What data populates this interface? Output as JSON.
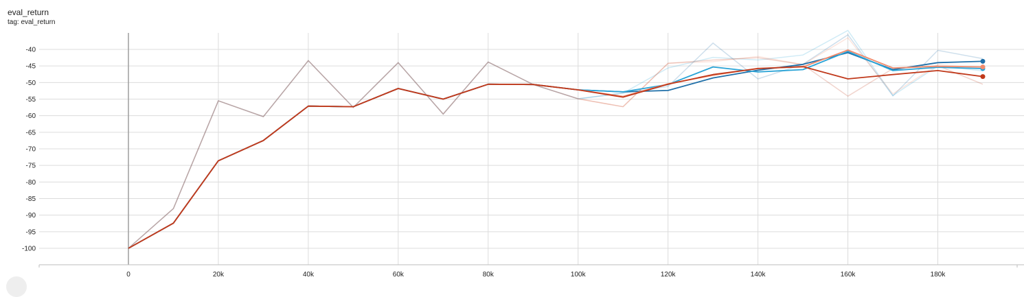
{
  "card": {
    "title": "eval_return",
    "subtitle": "tag: eval_return"
  },
  "chart_data": {
    "type": "line",
    "title": "eval_return",
    "xlabel": "",
    "ylabel": "",
    "xlim": [
      -20000,
      198000
    ],
    "ylim": [
      -105,
      -35
    ],
    "x_ticks": [
      0,
      20000,
      40000,
      60000,
      80000,
      100000,
      120000,
      140000,
      160000,
      180000
    ],
    "x_tick_labels": [
      "0",
      "20k",
      "40k",
      "60k",
      "80k",
      "100k",
      "120k",
      "140k",
      "160k",
      "180k"
    ],
    "y_ticks": [
      -40,
      -45,
      -50,
      -55,
      -60,
      -65,
      -70,
      -75,
      -80,
      -85,
      -90,
      -95,
      -100
    ],
    "y_tick_labels": [
      "-40",
      "-45",
      "-50",
      "-55",
      "-60",
      "-65",
      "-70",
      "-75",
      "-80",
      "-85",
      "-90",
      "-95",
      "-100"
    ],
    "grid": true,
    "series": [
      {
        "color": "#1f6fa8",
        "x": [
          0,
          10000,
          20000,
          30000,
          40000,
          50000,
          60000,
          70000,
          80000,
          90000,
          100000,
          110000,
          120000,
          130000,
          140000,
          150000,
          160000,
          170000,
          180000,
          190000
        ],
        "values": [
          -100,
          -92.4,
          -73.6,
          -67.5,
          -57.1,
          -57.3,
          -51.8,
          -55,
          -50.5,
          -50.6,
          -52.2,
          -52.8,
          -52.4,
          -48.6,
          -46.3,
          -44.5,
          -41,
          -46.1,
          -44,
          -43.6
        ],
        "raw": [
          -100,
          -88,
          -55.5,
          -60.3,
          -43.4,
          -57.5,
          -44,
          -59.5,
          -43.8,
          -50.6,
          -54.9,
          -53.2,
          -51.2,
          -38.1,
          -48.9,
          -44.5,
          -35.6,
          -54,
          -40.3,
          -42.8
        ]
      },
      {
        "color": "#29a3d6",
        "x": [
          0,
          10000,
          20000,
          30000,
          40000,
          50000,
          60000,
          70000,
          80000,
          90000,
          100000,
          110000,
          120000,
          130000,
          140000,
          150000,
          160000,
          170000,
          180000,
          190000
        ],
        "values": [
          -100,
          -92.4,
          -73.6,
          -67.5,
          -57.1,
          -57.3,
          -51.8,
          -55,
          -50.5,
          -50.6,
          -52.2,
          -52.8,
          -50.6,
          -45.3,
          -46.8,
          -46.1,
          -40.6,
          -46.4,
          -45.4,
          -45.8
        ],
        "raw": [
          -100,
          -88,
          -55.5,
          -60.3,
          -43.4,
          -57.5,
          -44,
          -59.5,
          -43.8,
          -50.6,
          -54.9,
          -53.2,
          -45.6,
          -42.4,
          -43.2,
          -41.7,
          -34.3,
          -53.9,
          -45,
          -46.5
        ]
      },
      {
        "color": "#f08c6e",
        "x": [
          0,
          10000,
          20000,
          30000,
          40000,
          50000,
          60000,
          70000,
          80000,
          90000,
          100000,
          110000,
          120000,
          130000,
          140000,
          150000,
          160000,
          170000,
          180000,
          190000
        ],
        "values": [
          -100,
          -92.4,
          -73.6,
          -67.5,
          -57.1,
          -57.3,
          -51.8,
          -55,
          -50.5,
          -50.6,
          -52.2,
          -54.2,
          -50.4,
          -47.8,
          -45.7,
          -45.3,
          -40.2,
          -45.6,
          -45.1,
          -45.3
        ],
        "raw": [
          -100,
          -88,
          -55.5,
          -60.3,
          -43.4,
          -57.5,
          -44,
          -59.5,
          -43.8,
          -50.6,
          -54.9,
          -57.3,
          -44.2,
          -43.7,
          -42.1,
          -44.6,
          -36.5,
          -53.4,
          -44.6,
          -45.6
        ]
      },
      {
        "color": "#c0391b",
        "x": [
          0,
          10000,
          20000,
          30000,
          40000,
          50000,
          60000,
          70000,
          80000,
          90000,
          100000,
          110000,
          120000,
          130000,
          140000,
          150000,
          160000,
          170000,
          180000,
          190000
        ],
        "values": [
          -100,
          -92.4,
          -73.6,
          -67.5,
          -57.1,
          -57.3,
          -51.8,
          -55,
          -50.5,
          -50.6,
          -52.2,
          -54.4,
          -50.5,
          -47.6,
          -45.8,
          -45.2,
          -48.9,
          -47.6,
          -46.4,
          -48.2
        ],
        "raw": [
          -100,
          -88,
          -55.5,
          -60.3,
          -43.4,
          -57.5,
          -44,
          -59.5,
          -43.8,
          -50.6,
          -54.9,
          -57.3,
          -44.2,
          -43.2,
          -42.5,
          -44.6,
          -54.1,
          -45.8,
          -44.9,
          -50.5
        ]
      }
    ]
  }
}
